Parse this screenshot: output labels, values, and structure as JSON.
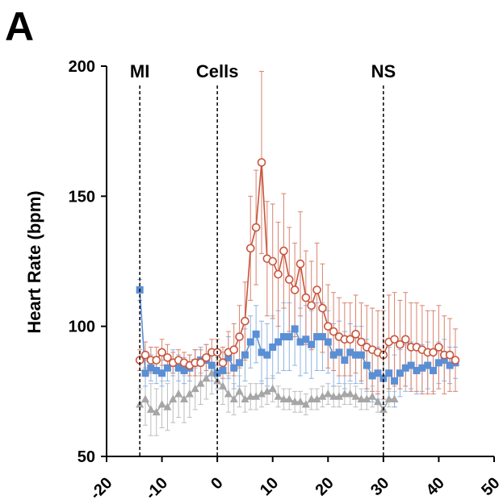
{
  "panel_label": "A",
  "chart_data": {
    "type": "line",
    "title": "",
    "xlabel": "",
    "ylabel": "Heart Rate (bpm)",
    "xlim": [
      -20,
      50
    ],
    "ylim": [
      50,
      200
    ],
    "x_ticks": [
      "-20",
      "-10",
      "0",
      "10",
      "20",
      "30",
      "40",
      "50"
    ],
    "y_ticks": [
      "50",
      "100",
      "150",
      "200"
    ],
    "grid": false,
    "legend": "none",
    "annotations": [
      {
        "label": "MI",
        "x": -14
      },
      {
        "label": "Cells",
        "x": 0
      },
      {
        "label": "NS",
        "x": 30
      }
    ],
    "colors": {
      "red": "#c8553d",
      "blue": "#5b8fd4",
      "gray": "#a6a6a6",
      "errbar_red": "#d9826e",
      "errbar_blue": "#8fb3e0",
      "errbar_gray": "#bdbdbd"
    },
    "series": [
      {
        "marker": "circle-open",
        "color": "#c8553d",
        "x": [
          -14,
          -13,
          -12,
          -11,
          -10,
          -9,
          -8,
          -7,
          -6,
          -5,
          -4,
          -3,
          -2,
          -1,
          0,
          1,
          2,
          3,
          4,
          5,
          6,
          7,
          8,
          9,
          10,
          11,
          12,
          13,
          14,
          15,
          16,
          17,
          18,
          19,
          20,
          21,
          22,
          23,
          24,
          25,
          26,
          27,
          28,
          29,
          30,
          31,
          32,
          33,
          34,
          35,
          36,
          37,
          38,
          39,
          40,
          41,
          42,
          43
        ],
        "y": [
          87,
          89,
          87,
          87,
          90,
          88,
          86,
          87,
          86,
          85,
          86,
          86,
          88,
          90,
          90,
          86,
          90,
          91,
          96,
          102,
          130,
          138,
          163,
          126,
          125,
          120,
          129,
          118,
          114,
          124,
          111,
          108,
          114,
          107,
          100,
          98,
          96,
          95,
          95,
          97,
          94,
          92,
          91,
          90,
          89,
          94,
          95,
          93,
          95,
          92,
          92,
          91,
          90,
          90,
          92,
          89,
          89,
          87
        ],
        "err": [
          4,
          5,
          5,
          5,
          5,
          5,
          4,
          4,
          4,
          4,
          5,
          5,
          5,
          5,
          5,
          6,
          8,
          10,
          12,
          15,
          20,
          22,
          35,
          22,
          22,
          20,
          22,
          20,
          18,
          20,
          18,
          17,
          18,
          17,
          16,
          15,
          15,
          14,
          14,
          15,
          15,
          16,
          16,
          16,
          17,
          18,
          18,
          17,
          18,
          17,
          17,
          17,
          16,
          16,
          16,
          15,
          14,
          12
        ]
      },
      {
        "marker": "square-filled",
        "color": "#5b8fd4",
        "x": [
          -14,
          -13,
          -12,
          -11,
          -10,
          -9,
          -8,
          -7,
          -6,
          -5,
          -4,
          -3,
          -2,
          -1,
          0,
          1,
          2,
          3,
          4,
          5,
          6,
          7,
          8,
          9,
          10,
          11,
          12,
          13,
          14,
          15,
          16,
          17,
          18,
          19,
          20,
          21,
          22,
          23,
          24,
          25,
          26,
          27,
          28,
          29,
          30,
          31,
          32,
          33,
          34,
          35,
          36,
          37,
          38,
          39,
          40,
          41,
          42,
          43
        ],
        "y": [
          114,
          82,
          84,
          83,
          82,
          84,
          86,
          84,
          83,
          84,
          86,
          87,
          87,
          85,
          82,
          83,
          88,
          84,
          86,
          89,
          94,
          97,
          90,
          89,
          92,
          94,
          96,
          96,
          99,
          94,
          95,
          93,
          96,
          96,
          94,
          89,
          90,
          87,
          90,
          89,
          89,
          85,
          81,
          82,
          80,
          82,
          79,
          82,
          84,
          85,
          83,
          84,
          85,
          83,
          86,
          87,
          85,
          86
        ],
        "err": [
          4,
          5,
          5,
          5,
          5,
          5,
          5,
          5,
          5,
          5,
          5,
          5,
          6,
          6,
          6,
          7,
          8,
          8,
          9,
          10,
          10,
          11,
          12,
          12,
          12,
          12,
          13,
          13,
          14,
          13,
          13,
          13,
          13,
          13,
          12,
          12,
          12,
          11,
          11,
          11,
          11,
          10,
          10,
          10,
          10,
          10,
          10,
          9,
          9,
          9,
          9,
          9,
          9,
          8,
          8,
          8,
          7,
          6
        ]
      },
      {
        "marker": "triangle-filled",
        "color": "#a6a6a6",
        "x": [
          -14,
          -13,
          -12,
          -11,
          -10,
          -9,
          -8,
          -7,
          -6,
          -5,
          -4,
          -3,
          -2,
          -1,
          0,
          1,
          2,
          3,
          4,
          5,
          6,
          7,
          8,
          9,
          10,
          11,
          12,
          13,
          14,
          15,
          16,
          17,
          18,
          19,
          20,
          21,
          22,
          23,
          24,
          25,
          26,
          27,
          28,
          29,
          30,
          31,
          32
        ],
        "y": [
          70,
          72,
          68,
          67,
          70,
          69,
          72,
          74,
          72,
          74,
          76,
          78,
          80,
          82,
          79,
          77,
          74,
          72,
          75,
          72,
          73,
          73,
          74,
          75,
          76,
          73,
          72,
          72,
          71,
          71,
          70,
          72,
          72,
          73,
          74,
          73,
          73,
          74,
          74,
          73,
          72,
          72,
          73,
          71,
          68,
          72,
          72
        ],
        "err": [
          6,
          10,
          10,
          9,
          9,
          9,
          9,
          9,
          9,
          9,
          8,
          8,
          8,
          8,
          8,
          7,
          7,
          6,
          6,
          5,
          5,
          5,
          5,
          5,
          5,
          4,
          4,
          4,
          4,
          4,
          4,
          4,
          4,
          4,
          4,
          4,
          4,
          4,
          4,
          4,
          4,
          4,
          4,
          4,
          4,
          3,
          3
        ]
      }
    ]
  }
}
